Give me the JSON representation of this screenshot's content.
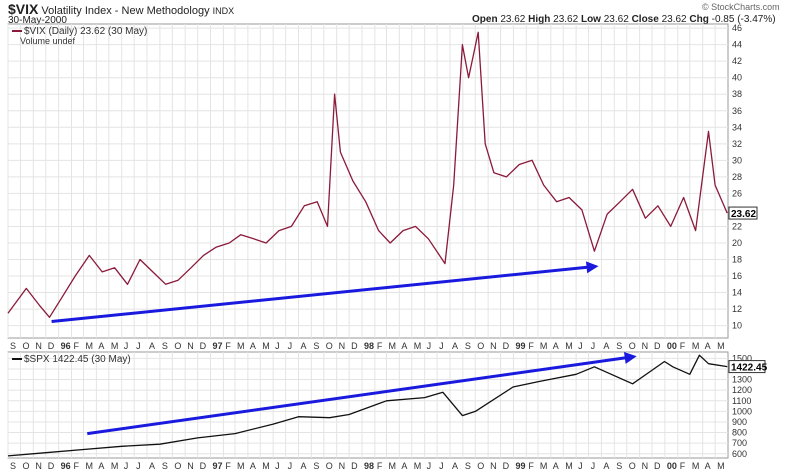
{
  "header": {
    "symbol": "$VIX",
    "name": "Volatility Index - New Methodology",
    "exchange": "INDX",
    "date": "30-May-2000",
    "open_label": "Open",
    "open": "23.62",
    "high_label": "High",
    "high": "23.62",
    "low_label": "Low",
    "low": "23.62",
    "close_label": "Close",
    "close": "23.62",
    "chg_label": "Chg",
    "chg": "-0.85 (-3.47%)",
    "watermark": "© StockCharts.com"
  },
  "colors": {
    "vix_line": "#8b1a3a",
    "vix_black": "#111111",
    "spx_line": "#111111",
    "arrow": "#1a1adf",
    "grid": "#e4e4e4"
  },
  "chart_data": [
    {
      "type": "line",
      "legend": "$VIX (Daily) 23.62 (30 May)",
      "legend2": "Volume undef",
      "last_value_label": "23.62",
      "y_ticks": [
        10,
        12,
        14,
        16,
        18,
        20,
        22,
        24,
        26,
        28,
        30,
        32,
        34,
        36,
        38,
        40,
        42,
        44,
        46
      ],
      "ylim": [
        8.5,
        46.5
      ],
      "x": [
        "1995-09-01",
        "1995-10-15",
        "1995-11-15",
        "1995-12-10",
        "1996-01-10",
        "1996-02-10",
        "1996-03-15",
        "1996-04-15",
        "1996-05-15",
        "1996-06-15",
        "1996-07-15",
        "1996-08-15",
        "1996-09-15",
        "1996-10-15",
        "1996-11-15",
        "1996-12-15",
        "1997-01-15",
        "1997-02-15",
        "1997-03-15",
        "1997-04-15",
        "1997-05-15",
        "1997-06-15",
        "1997-07-15",
        "1997-08-15",
        "1997-09-15",
        "1997-10-10",
        "1997-10-27",
        "1997-11-10",
        "1997-12-10",
        "1998-01-10",
        "1998-02-10",
        "1998-03-10",
        "1998-04-10",
        "1998-05-10",
        "1998-06-10",
        "1998-07-20",
        "1998-08-10",
        "1998-08-31",
        "1998-09-15",
        "1998-10-08",
        "1998-10-25",
        "1998-11-15",
        "1998-12-15",
        "1999-01-15",
        "1999-02-15",
        "1999-03-15",
        "1999-04-15",
        "1999-05-15",
        "1999-06-15",
        "1999-07-15",
        "1999-08-15",
        "1999-09-15",
        "1999-10-15",
        "1999-11-15",
        "1999-12-15",
        "2000-01-15",
        "2000-02-15",
        "2000-03-15",
        "2000-04-15",
        "2000-05-01",
        "2000-05-30"
      ],
      "values": [
        11.5,
        14.5,
        12.5,
        11.0,
        13.5,
        16.0,
        18.5,
        16.5,
        17.0,
        15.0,
        18.0,
        16.5,
        15.0,
        15.5,
        17.0,
        18.5,
        19.5,
        20.0,
        21.0,
        20.5,
        20.0,
        21.5,
        22.0,
        24.5,
        25.0,
        22.0,
        38.0,
        31.0,
        27.5,
        25.0,
        21.5,
        20.0,
        21.5,
        22.0,
        20.5,
        17.5,
        27.0,
        44.0,
        40.0,
        45.5,
        32.0,
        28.5,
        28.0,
        29.5,
        30.0,
        27.0,
        25.0,
        25.5,
        24.0,
        19.0,
        23.5,
        25.0,
        26.5,
        23.0,
        24.5,
        22.0,
        25.5,
        21.5,
        33.5,
        27.0,
        23.62
      ],
      "arrow": {
        "from": {
          "x": "1995-12-15",
          "y": 10.5
        },
        "to": {
          "x": "1999-07-25",
          "y": 17.2
        }
      }
    },
    {
      "type": "line",
      "legend": "$SPX 1422.45 (30 May)",
      "last_value_label": "1422.45",
      "y_ticks": [
        600,
        700,
        800,
        900,
        1000,
        1100,
        1200,
        1300,
        1400,
        1500
      ],
      "ylim": [
        560,
        1560
      ],
      "x": [
        "1995-09-01",
        "1995-12-01",
        "1996-03-01",
        "1996-06-01",
        "1996-09-01",
        "1996-12-01",
        "1997-03-01",
        "1997-06-01",
        "1997-08-01",
        "1997-10-15",
        "1997-12-01",
        "1998-03-01",
        "1998-06-01",
        "1998-07-15",
        "1998-08-31",
        "1998-10-01",
        "1998-12-31",
        "1999-03-01",
        "1999-06-01",
        "1999-07-15",
        "1999-10-15",
        "1999-12-31",
        "2000-01-20",
        "2000-03-01",
        "2000-03-24",
        "2000-04-15",
        "2000-05-30"
      ],
      "values": [
        580,
        610,
        640,
        670,
        690,
        750,
        790,
        880,
        950,
        940,
        970,
        1100,
        1130,
        1180,
        960,
        1000,
        1230,
        1280,
        1350,
        1420,
        1260,
        1470,
        1420,
        1350,
        1530,
        1450,
        1422.45
      ],
      "arrow": {
        "from": {
          "x": "1996-03-10",
          "y": 790
        },
        "to": {
          "x": "1999-10-25",
          "y": 1520
        }
      }
    }
  ],
  "x_axis": {
    "month_labels": [
      "S",
      "O",
      "N",
      "D",
      "96",
      "F",
      "M",
      "A",
      "M",
      "J",
      "J",
      "A",
      "S",
      "O",
      "N",
      "D",
      "97",
      "F",
      "M",
      "A",
      "M",
      "J",
      "J",
      "A",
      "S",
      "O",
      "N",
      "D",
      "98",
      "F",
      "M",
      "A",
      "M",
      "J",
      "J",
      "A",
      "S",
      "O",
      "N",
      "D",
      "99",
      "F",
      "M",
      "A",
      "M",
      "J",
      "J",
      "A",
      "S",
      "O",
      "N",
      "D",
      "00",
      "F",
      "M",
      "A",
      "M"
    ],
    "start": "1995-09"
  }
}
